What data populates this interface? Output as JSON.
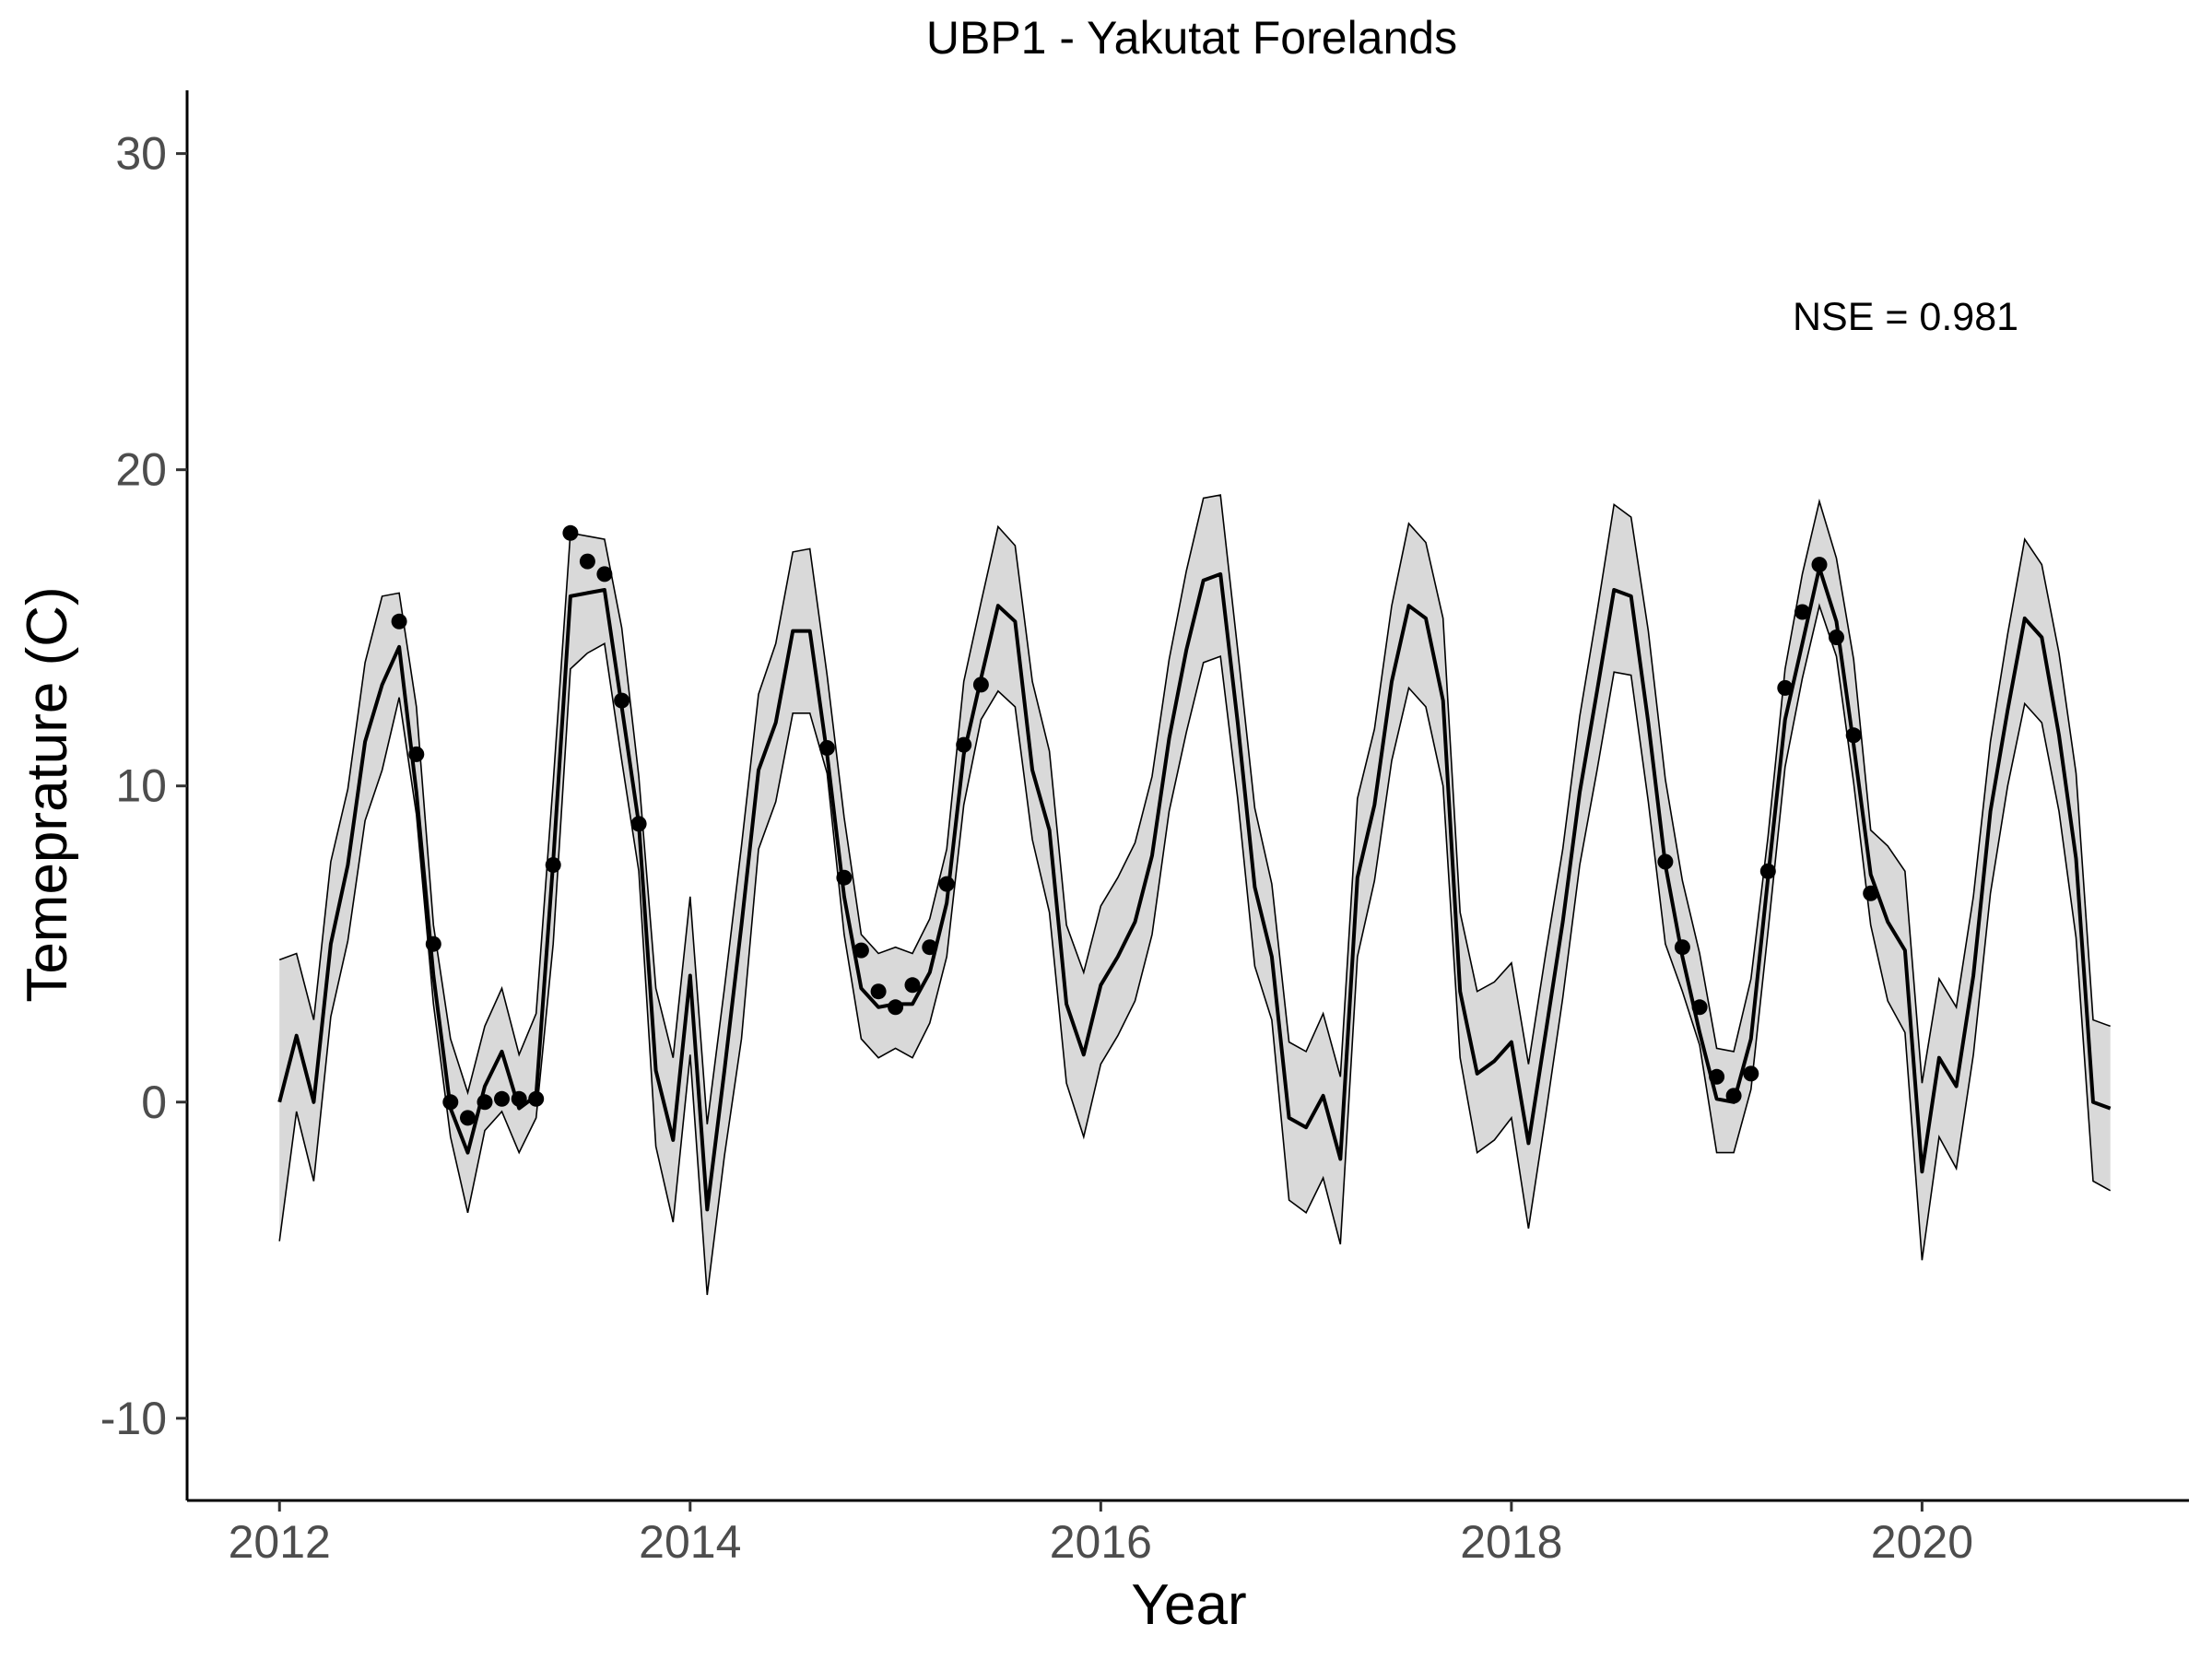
{
  "chart_data": {
    "type": "line",
    "title": "UBP1 - Yakutat Forelands",
    "xlabel": "Year",
    "ylabel": "Temeprature (C)",
    "annotation": "NSE = 0.981",
    "xlim": [
      2011.55,
      2021.3
    ],
    "ylim": [
      -12.6,
      32.0
    ],
    "xticks": [
      2012,
      2014,
      2016,
      2018,
      2020
    ],
    "xtick_labels": [
      "2012",
      "2014",
      "2016",
      "2018",
      "2020"
    ],
    "yticks": [
      -10,
      0,
      10,
      20,
      30
    ],
    "ytick_labels": [
      "-10",
      "0",
      "10",
      "20",
      "30"
    ],
    "grid": false,
    "legend": "none",
    "colors": {
      "line": "#000000",
      "band": "#d9d9d9",
      "points": "#000000"
    },
    "series": [
      {
        "kind": "line",
        "x": [
          2012.0,
          2012.083,
          2012.167,
          2012.25,
          2012.333,
          2012.417,
          2012.5,
          2012.583,
          2012.667,
          2012.75,
          2012.833,
          2012.917,
          2013.0,
          2013.083,
          2013.167,
          2013.25,
          2013.333,
          2013.417,
          2013.5,
          2013.583,
          2013.667,
          2013.75,
          2013.833,
          2013.917,
          2014.0,
          2014.083,
          2014.167,
          2014.25,
          2014.333,
          2014.417,
          2014.5,
          2014.583,
          2014.667,
          2014.75,
          2014.833,
          2014.917,
          2015.0,
          2015.083,
          2015.167,
          2015.25,
          2015.333,
          2015.417,
          2015.5,
          2015.583,
          2015.667,
          2015.75,
          2015.833,
          2015.917,
          2016.0,
          2016.083,
          2016.167,
          2016.25,
          2016.333,
          2016.417,
          2016.5,
          2016.583,
          2016.667,
          2016.75,
          2016.833,
          2016.917,
          2017.0,
          2017.083,
          2017.167,
          2017.25,
          2017.333,
          2017.417,
          2017.5,
          2017.583,
          2017.667,
          2017.75,
          2017.833,
          2017.917,
          2018.0,
          2018.083,
          2018.167,
          2018.25,
          2018.333,
          2018.417,
          2018.5,
          2018.583,
          2018.667,
          2018.75,
          2018.833,
          2018.917,
          2019.0,
          2019.083,
          2019.167,
          2019.25,
          2019.333,
          2019.417,
          2019.5,
          2019.583,
          2019.667,
          2019.75,
          2019.833,
          2019.917,
          2020.0,
          2020.083,
          2020.167,
          2020.25,
          2020.333,
          2020.417,
          2020.5,
          2020.583,
          2020.667,
          2020.75,
          2020.833,
          2020.917
        ],
        "y": [
          0.0,
          2.1,
          0.0,
          5.0,
          7.5,
          11.4,
          13.2,
          14.4,
          9.8,
          4.0,
          -0.2,
          -1.6,
          0.5,
          1.6,
          -0.2,
          0.2,
          7.6,
          16.0,
          16.1,
          16.2,
          12.5,
          8.8,
          1.0,
          -1.2,
          4.0,
          -3.4,
          1.0,
          5.6,
          10.5,
          12.0,
          14.9,
          14.9,
          11.0,
          6.5,
          3.6,
          3.0,
          3.1,
          3.1,
          4.1,
          6.3,
          11.0,
          13.4,
          15.7,
          15.2,
          10.5,
          8.6,
          3.1,
          1.5,
          3.7,
          4.6,
          5.7,
          7.8,
          11.5,
          14.3,
          16.5,
          16.7,
          12.0,
          6.8,
          4.6,
          -0.5,
          -0.8,
          0.2,
          -1.8,
          7.1,
          9.4,
          13.3,
          15.7,
          15.3,
          12.7,
          3.5,
          0.9,
          1.3,
          1.9,
          -1.3,
          2.2,
          5.7,
          9.8,
          13.0,
          16.2,
          16.0,
          12.0,
          7.5,
          4.6,
          2.2,
          0.1,
          0.0,
          2.0,
          7.1,
          12.1,
          14.5,
          16.9,
          15.2,
          11.3,
          7.2,
          5.7,
          4.8,
          -2.2,
          1.4,
          0.5,
          4.0,
          9.2,
          12.4,
          15.3,
          14.7,
          11.6,
          7.7,
          0.0,
          -0.2
        ]
      },
      {
        "kind": "band",
        "upper": [
          4.5,
          4.7,
          2.6,
          7.6,
          9.9,
          13.9,
          16.0,
          16.1,
          12.5,
          5.6,
          2.0,
          0.3,
          2.4,
          3.6,
          1.5,
          2.8,
          10.1,
          18.0,
          17.9,
          17.8,
          15.0,
          10.3,
          3.6,
          1.4,
          6.5,
          -0.7,
          3.6,
          8.1,
          12.9,
          14.5,
          17.4,
          17.5,
          13.5,
          9.0,
          5.3,
          4.7,
          4.9,
          4.7,
          5.8,
          8.0,
          13.3,
          15.8,
          18.2,
          17.6,
          13.3,
          11.1,
          5.6,
          4.1,
          6.2,
          7.1,
          8.2,
          10.3,
          14.0,
          16.8,
          19.1,
          19.2,
          14.3,
          9.3,
          6.9,
          1.9,
          1.6,
          2.8,
          0.8,
          9.6,
          11.8,
          15.7,
          18.3,
          17.7,
          15.3,
          6.0,
          3.5,
          3.8,
          4.4,
          1.2,
          4.7,
          8.0,
          12.2,
          15.5,
          18.9,
          18.5,
          14.9,
          10.2,
          7.0,
          4.7,
          1.7,
          1.6,
          3.9,
          8.4,
          13.7,
          16.7,
          19.0,
          17.2,
          14.0,
          8.6,
          8.1,
          7.3,
          0.6,
          3.9,
          3.0,
          6.5,
          11.4,
          14.8,
          17.8,
          17.0,
          14.2,
          10.4,
          2.6,
          2.4
        ],
        "lower": [
          -4.4,
          -0.3,
          -2.5,
          2.7,
          5.1,
          8.9,
          10.5,
          12.8,
          9.1,
          3.1,
          -1.1,
          -3.5,
          -0.9,
          -0.3,
          -1.6,
          -0.5,
          5.0,
          13.7,
          14.2,
          14.5,
          10.8,
          7.3,
          -1.4,
          -3.8,
          1.5,
          -6.1,
          -1.7,
          2.0,
          8.0,
          9.5,
          12.3,
          12.3,
          10.4,
          5.3,
          2.0,
          1.4,
          1.7,
          1.4,
          2.5,
          4.6,
          9.4,
          12.1,
          13.0,
          12.5,
          8.3,
          6.0,
          0.6,
          -1.1,
          1.2,
          2.1,
          3.2,
          5.3,
          9.2,
          11.7,
          13.9,
          14.1,
          9.6,
          4.3,
          2.6,
          -3.1,
          -3.5,
          -2.4,
          -4.5,
          4.6,
          7.0,
          10.8,
          13.1,
          12.5,
          10.0,
          1.4,
          -1.6,
          -1.2,
          -0.5,
          -4.0,
          -0.4,
          3.3,
          7.5,
          10.5,
          13.6,
          13.5,
          9.5,
          5.0,
          3.5,
          1.8,
          -1.6,
          -1.6,
          0.4,
          5.4,
          10.6,
          13.4,
          15.7,
          14.1,
          10.1,
          5.6,
          3.2,
          2.2,
          -5.0,
          -1.1,
          -2.1,
          1.5,
          6.6,
          10.0,
          12.6,
          12.0,
          9.2,
          5.2,
          -2.5,
          -2.8
        ]
      },
      {
        "kind": "points",
        "x": [
          2012.583,
          2012.667,
          2012.75,
          2012.833,
          2012.917,
          2013.0,
          2013.083,
          2013.167,
          2013.25,
          2013.333,
          2013.417,
          2013.5,
          2013.583,
          2013.667,
          2013.75,
          2014.667,
          2014.75,
          2014.833,
          2014.917,
          2015.0,
          2015.083,
          2015.167,
          2015.25,
          2015.333,
          2015.417,
          2018.75,
          2018.833,
          2018.917,
          2019.0,
          2019.083,
          2019.167,
          2019.25,
          2019.333,
          2019.417,
          2019.5,
          2019.583,
          2019.667,
          2019.75
        ],
        "y": [
          15.2,
          11.0,
          5.0,
          0.0,
          -0.5,
          0.0,
          0.1,
          0.1,
          0.1,
          7.5,
          18.0,
          17.1,
          16.7,
          12.7,
          8.8,
          11.2,
          7.1,
          4.8,
          3.5,
          3.0,
          3.7,
          4.9,
          6.9,
          11.3,
          13.2,
          7.6,
          4.9,
          3.0,
          0.8,
          0.2,
          0.9,
          7.3,
          13.1,
          15.5,
          17.0,
          14.7,
          11.6,
          6.6
        ]
      }
    ]
  }
}
